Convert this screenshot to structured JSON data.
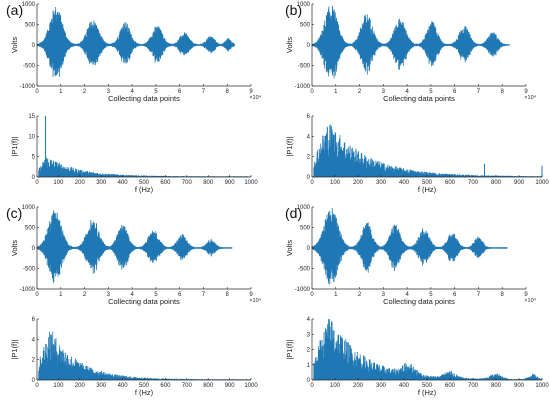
{
  "panels": [
    {
      "label": "(a)"
    },
    {
      "label": "(b)"
    },
    {
      "label": "(c)"
    },
    {
      "label": "(d)"
    }
  ],
  "chart_data": [
    {
      "panel": "(a)",
      "kind": "time",
      "type": "area",
      "xlabel": "Collecting data points",
      "ylabel": "Volts",
      "x_exponent": "×10⁴",
      "xlim": [
        0,
        9
      ],
      "ylim": [
        -1000,
        1000
      ],
      "xticks": [
        0,
        1,
        2,
        3,
        4,
        5,
        6,
        7,
        8,
        9
      ],
      "yticks": [
        -1000,
        -500,
        0,
        500,
        1000
      ],
      "signal_end": 8.3,
      "bursts": [
        [
          0.8,
          0.55,
          950
        ],
        [
          2.35,
          0.5,
          620
        ],
        [
          3.7,
          0.45,
          560
        ],
        [
          5.05,
          0.45,
          460
        ],
        [
          6.2,
          0.4,
          290
        ],
        [
          7.3,
          0.35,
          210
        ],
        [
          8.05,
          0.25,
          160
        ]
      ]
    },
    {
      "panel": "(a)",
      "kind": "spectrum",
      "type": "area",
      "xlabel": "f (Hz)",
      "ylabel": "|P1(f)|",
      "xlim": [
        0,
        1000
      ],
      "ylim": [
        0,
        15
      ],
      "xticks": [
        0,
        100,
        200,
        300,
        400,
        500,
        600,
        700,
        800,
        900,
        1000
      ],
      "yticks": [
        0,
        5,
        10,
        15
      ],
      "peak_hz": 45,
      "env_peak": 5.2,
      "decay_hz": 140,
      "spikes": [
        [
          40,
          15
        ]
      ]
    },
    {
      "panel": "(b)",
      "kind": "time",
      "type": "area",
      "xlabel": "Collecting data points",
      "ylabel": "Volts",
      "x_exponent": "×10⁴",
      "xlim": [
        0,
        9
      ],
      "ylim": [
        -1000,
        1000
      ],
      "xticks": [
        0,
        1,
        2,
        3,
        4,
        5,
        6,
        7,
        8,
        9
      ],
      "yticks": [
        -1000,
        -500,
        0,
        500,
        1000
      ],
      "signal_end": 8.3,
      "bursts": [
        [
          0.8,
          0.55,
          980
        ],
        [
          2.3,
          0.5,
          760
        ],
        [
          3.7,
          0.5,
          640
        ],
        [
          5.05,
          0.45,
          560
        ],
        [
          6.4,
          0.45,
          460
        ],
        [
          7.6,
          0.4,
          310
        ]
      ]
    },
    {
      "panel": "(b)",
      "kind": "spectrum",
      "type": "area",
      "xlabel": "f (Hz)",
      "ylabel": "|P1(f)|",
      "xlim": [
        0,
        1000
      ],
      "ylim": [
        0,
        6
      ],
      "xticks": [
        0,
        100,
        200,
        300,
        400,
        500,
        600,
        700,
        800,
        900,
        1000
      ],
      "yticks": [
        0,
        2,
        4,
        6
      ],
      "peak_hz": 70,
      "env_peak": 5.6,
      "decay_hz": 170,
      "spikes": [
        [
          750,
          1.3
        ],
        [
          1000,
          1.1
        ]
      ]
    },
    {
      "panel": "(c)",
      "kind": "time",
      "type": "area",
      "xlabel": "Collecting data points",
      "ylabel": "Volts",
      "x_exponent": "×10⁴",
      "xlim": [
        0,
        9
      ],
      "ylim": [
        -1000,
        1000
      ],
      "xticks": [
        0,
        1,
        2,
        3,
        4,
        5,
        6,
        7,
        8,
        9
      ],
      "yticks": [
        -1000,
        -500,
        0,
        500,
        1000
      ],
      "signal_end": 8.2,
      "bursts": [
        [
          0.75,
          0.55,
          960
        ],
        [
          2.35,
          0.5,
          720
        ],
        [
          3.6,
          0.45,
          560
        ],
        [
          4.9,
          0.45,
          430
        ],
        [
          6.1,
          0.4,
          330
        ],
        [
          7.3,
          0.35,
          210
        ]
      ]
    },
    {
      "panel": "(c)",
      "kind": "spectrum",
      "type": "area",
      "xlabel": "f (Hz)",
      "ylabel": "|P1(f)|",
      "xlim": [
        0,
        1000
      ],
      "ylim": [
        0,
        6
      ],
      "xticks": [
        0,
        100,
        200,
        300,
        400,
        500,
        600,
        700,
        800,
        900,
        1000
      ],
      "yticks": [
        0,
        2,
        4,
        6
      ],
      "peak_hz": 60,
      "env_peak": 5.2,
      "decay_hz": 130,
      "spikes": []
    },
    {
      "panel": "(d)",
      "kind": "time",
      "type": "area",
      "xlabel": "Collecting data points",
      "ylabel": "Volts",
      "x_exponent": "×10⁴",
      "xlim": [
        0,
        9
      ],
      "ylim": [
        -1000,
        1000
      ],
      "xticks": [
        0,
        1,
        2,
        3,
        4,
        5,
        6,
        7,
        8,
        9
      ],
      "yticks": [
        -1000,
        -500,
        0,
        500,
        1000
      ],
      "signal_end": 8.2,
      "bursts": [
        [
          0.8,
          0.6,
          980
        ],
        [
          2.3,
          0.45,
          640
        ],
        [
          3.5,
          0.45,
          560
        ],
        [
          4.7,
          0.45,
          470
        ],
        [
          5.9,
          0.4,
          380
        ],
        [
          7.0,
          0.35,
          270
        ]
      ]
    },
    {
      "panel": "(d)",
      "kind": "spectrum",
      "type": "area",
      "xlabel": "f (Hz)",
      "ylabel": "|P1(f)|",
      "xlim": [
        0,
        1000
      ],
      "ylim": [
        0,
        4
      ],
      "xticks": [
        0,
        100,
        200,
        300,
        400,
        500,
        600,
        700,
        800,
        900,
        1000
      ],
      "yticks": [
        0,
        1,
        2,
        3,
        4
      ],
      "peak_hz": 75,
      "env_peak": 4.3,
      "decay_hz": 150,
      "spikes": [],
      "humps": [
        [
          420,
          0.7,
          40
        ],
        [
          600,
          0.45,
          35
        ],
        [
          800,
          0.35,
          35
        ],
        [
          960,
          0.35,
          25
        ]
      ]
    }
  ],
  "style": {
    "line_color": "#1f77b4",
    "axis_color": "#262626",
    "background": "#ffffff"
  }
}
